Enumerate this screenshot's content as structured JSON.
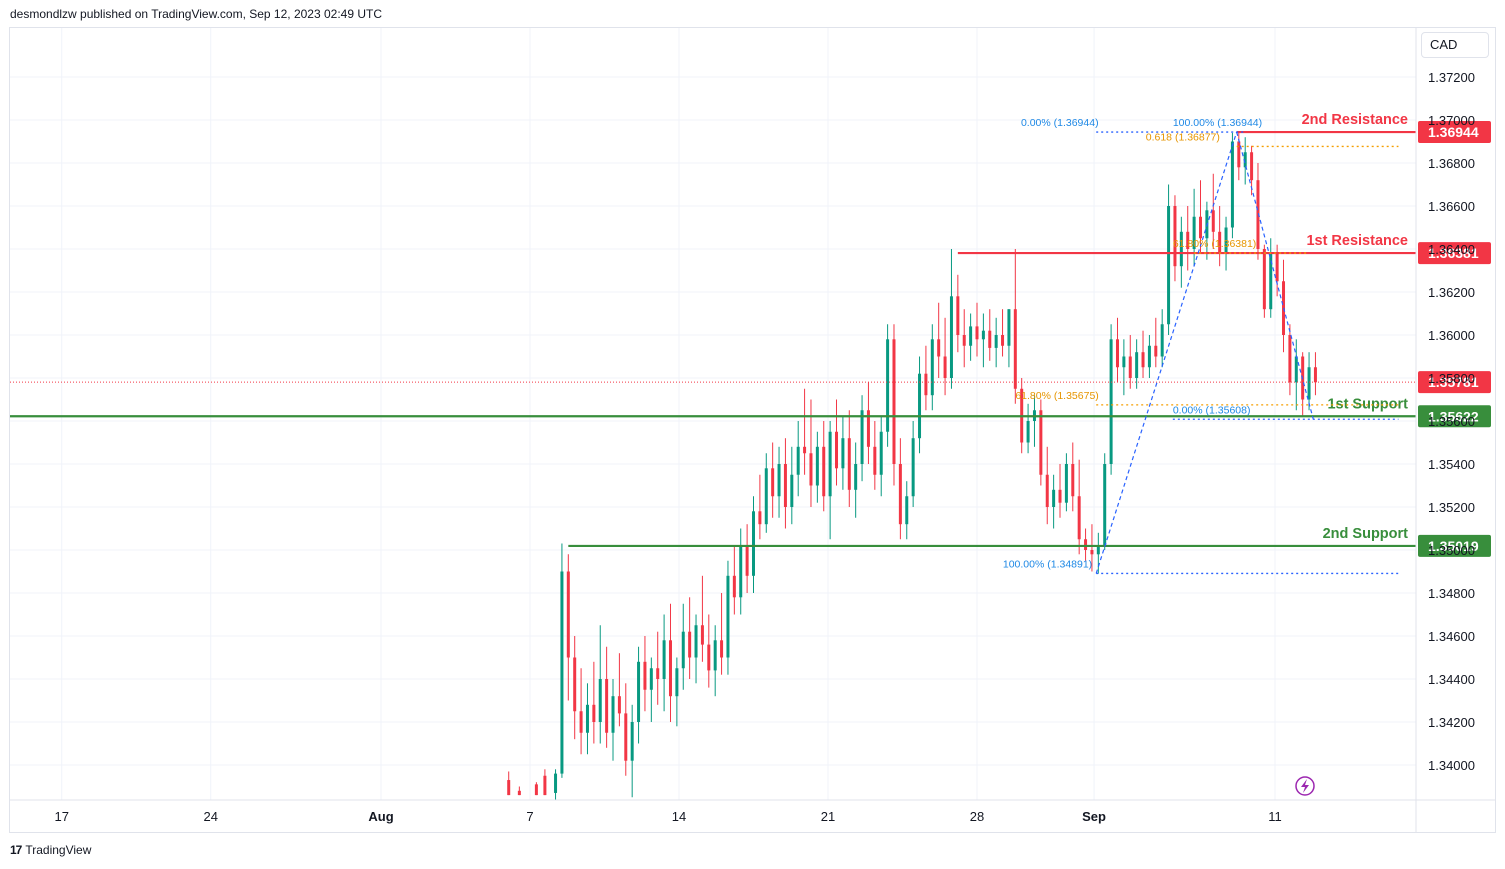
{
  "header": {
    "text": "desmondlzw published on TradingView.com, Sep 12, 2023 02:49 UTC"
  },
  "footer": {
    "brand": "TradingView",
    "logo_glyph": "17"
  },
  "currency_button": {
    "label": "CAD"
  },
  "colors": {
    "up": "#26a69a",
    "down": "#ef5350",
    "up_body": "#089981",
    "down_body": "#f23645",
    "resistance": "#f23645",
    "support": "#388e3c",
    "fib_blue": "#2962ff",
    "fib_orange": "#f59f00",
    "current": "#f23645",
    "grid": "#f0f3fa",
    "lightning": "#9c27b0"
  },
  "chart_data": {
    "type": "candlestick",
    "symbol_quote": "CAD",
    "ylim": [
      1.338,
      1.374
    ],
    "y_ticks": [
      "1.37200",
      "1.37000",
      "1.36800",
      "1.36600",
      "1.36400",
      "1.36200",
      "1.36000",
      "1.35800",
      "1.35600",
      "1.35400",
      "1.35200",
      "1.35000",
      "1.34800",
      "1.34600",
      "1.34400",
      "1.34200",
      "1.34000"
    ],
    "x_ticks": [
      {
        "label": "17",
        "day": -22
      },
      {
        "label": "24",
        "day": -15
      },
      {
        "label": "Aug",
        "day": -7
      },
      {
        "label": "7",
        "day": 0
      },
      {
        "label": "14",
        "day": 7
      },
      {
        "label": "21",
        "day": 14
      },
      {
        "label": "28",
        "day": 21
      },
      {
        "label": "Sep",
        "day": 26.5
      },
      {
        "label": "11",
        "day": 35
      }
    ],
    "x_range_days": [
      -25.6,
      41.5
    ],
    "current_price": 1.35781,
    "levels": [
      {
        "name": "2nd Resistance",
        "value": 1.36944,
        "kind": "resistance",
        "label": "1.36944",
        "start_day": 33.2
      },
      {
        "name": "1st Resistance",
        "value": 1.36381,
        "kind": "resistance",
        "label": "1.36381",
        "start_day": 20.1
      },
      {
        "name": "1st Support",
        "value": 1.35622,
        "kind": "support",
        "label": "1.35622",
        "start_day": -25.6
      },
      {
        "name": "2nd Support",
        "value": 1.35019,
        "kind": "support",
        "label": "1.35019",
        "start_day": 1.8
      }
    ],
    "current_label": "1.35781",
    "fib_annotations": [
      {
        "text": "0.00% (1.36944)",
        "price": 1.36944,
        "color": "blue",
        "anchor_day": 26.9,
        "align": "end"
      },
      {
        "text": "100.00% (1.36944)",
        "price": 1.36944,
        "color": "blue",
        "anchor_day": 30.2,
        "align": "start"
      },
      {
        "text": "0.618 (1.36877)",
        "price": 1.36877,
        "color": "orange",
        "anchor_day": 32.6,
        "align": "end"
      },
      {
        "text": "61.80% (1.36381)",
        "price": 1.36381,
        "color": "orange",
        "anchor_day": 30.2,
        "align": "start"
      },
      {
        "text": "61.80% (1.35675)",
        "price": 1.35675,
        "color": "orange",
        "anchor_day": 22.8,
        "align": "start"
      },
      {
        "text": "0.00% (1.35608)",
        "price": 1.35608,
        "color": "blue",
        "anchor_day": 30.2,
        "align": "start"
      },
      {
        "text": "100.00% (1.34891)",
        "price": 1.34891,
        "color": "blue",
        "anchor_day": 26.6,
        "align": "end"
      }
    ],
    "fib_lines": [
      {
        "price": 1.36944,
        "from_day": 26.6,
        "to_day": 33.6,
        "color": "blue"
      },
      {
        "price": 1.36877,
        "from_day": 33.2,
        "to_day": 40.8,
        "color": "orange"
      },
      {
        "price": 1.36381,
        "from_day": 31.2,
        "to_day": 36.5,
        "color": "orange"
      },
      {
        "price": 1.35675,
        "from_day": 26.6,
        "to_day": 40.8,
        "color": "orange"
      },
      {
        "price": 1.35608,
        "from_day": 30.2,
        "to_day": 40.8,
        "color": "blue"
      },
      {
        "price": 1.34891,
        "from_day": 26.6,
        "to_day": 40.8,
        "color": "blue"
      }
    ],
    "trend_lines": [
      {
        "from_day": 26.6,
        "from_price": 1.34891,
        "to_day": 33.2,
        "to_price": 1.36944
      },
      {
        "from_day": 33.2,
        "from_price": 1.36944,
        "to_day": 36.8,
        "to_price": 1.35608
      }
    ],
    "candles": [
      {
        "d": -1.0,
        "o": 1.3393,
        "h": 1.3397,
        "l": 1.3386,
        "c": 1.3386
      },
      {
        "d": -0.5,
        "o": 1.3388,
        "h": 1.339,
        "l": 1.3386,
        "c": 1.3386
      },
      {
        "d": 0.3,
        "o": 1.3391,
        "h": 1.3392,
        "l": 1.3386,
        "c": 1.3386
      },
      {
        "d": 0.7,
        "o": 1.3395,
        "h": 1.3398,
        "l": 1.3386,
        "c": 1.3386
      },
      {
        "d": 1.2,
        "o": 1.3387,
        "h": 1.3398,
        "l": 1.338,
        "c": 1.3396
      },
      {
        "d": 1.5,
        "o": 1.3396,
        "h": 1.3503,
        "l": 1.3394,
        "c": 1.349
      },
      {
        "d": 1.8,
        "o": 1.349,
        "h": 1.3498,
        "l": 1.343,
        "c": 1.345
      },
      {
        "d": 2.1,
        "o": 1.345,
        "h": 1.346,
        "l": 1.3412,
        "c": 1.3425
      },
      {
        "d": 2.4,
        "o": 1.3425,
        "h": 1.3445,
        "l": 1.3405,
        "c": 1.3415
      },
      {
        "d": 2.7,
        "o": 1.3415,
        "h": 1.3438,
        "l": 1.3405,
        "c": 1.3428
      },
      {
        "d": 3.0,
        "o": 1.3428,
        "h": 1.3448,
        "l": 1.341,
        "c": 1.342
      },
      {
        "d": 3.3,
        "o": 1.342,
        "h": 1.3465,
        "l": 1.341,
        "c": 1.344
      },
      {
        "d": 3.6,
        "o": 1.344,
        "h": 1.3455,
        "l": 1.3408,
        "c": 1.3415
      },
      {
        "d": 3.9,
        "o": 1.3415,
        "h": 1.344,
        "l": 1.3402,
        "c": 1.3432
      },
      {
        "d": 4.2,
        "o": 1.3432,
        "h": 1.3452,
        "l": 1.3418,
        "c": 1.3424
      },
      {
        "d": 4.5,
        "o": 1.3424,
        "h": 1.3438,
        "l": 1.3395,
        "c": 1.3402
      },
      {
        "d": 4.8,
        "o": 1.3402,
        "h": 1.3428,
        "l": 1.3385,
        "c": 1.342
      },
      {
        "d": 5.1,
        "o": 1.342,
        "h": 1.3455,
        "l": 1.341,
        "c": 1.3448
      },
      {
        "d": 5.4,
        "o": 1.3448,
        "h": 1.346,
        "l": 1.3425,
        "c": 1.3435
      },
      {
        "d": 5.7,
        "o": 1.3435,
        "h": 1.345,
        "l": 1.342,
        "c": 1.3445
      },
      {
        "d": 6.0,
        "o": 1.3445,
        "h": 1.3462,
        "l": 1.3428,
        "c": 1.344
      },
      {
        "d": 6.3,
        "o": 1.344,
        "h": 1.347,
        "l": 1.3425,
        "c": 1.3458
      },
      {
        "d": 6.6,
        "o": 1.3458,
        "h": 1.3475,
        "l": 1.342,
        "c": 1.3432
      },
      {
        "d": 6.9,
        "o": 1.3432,
        "h": 1.345,
        "l": 1.3418,
        "c": 1.3445
      },
      {
        "d": 7.2,
        "o": 1.3445,
        "h": 1.3475,
        "l": 1.3435,
        "c": 1.3462
      },
      {
        "d": 7.5,
        "o": 1.3462,
        "h": 1.3478,
        "l": 1.344,
        "c": 1.345
      },
      {
        "d": 7.8,
        "o": 1.345,
        "h": 1.347,
        "l": 1.3438,
        "c": 1.3465
      },
      {
        "d": 8.1,
        "o": 1.3465,
        "h": 1.3488,
        "l": 1.3448,
        "c": 1.3456
      },
      {
        "d": 8.4,
        "o": 1.3456,
        "h": 1.347,
        "l": 1.3436,
        "c": 1.3444
      },
      {
        "d": 8.7,
        "o": 1.3444,
        "h": 1.3465,
        "l": 1.3432,
        "c": 1.3458
      },
      {
        "d": 9.0,
        "o": 1.3458,
        "h": 1.348,
        "l": 1.3442,
        "c": 1.345
      },
      {
        "d": 9.3,
        "o": 1.345,
        "h": 1.3495,
        "l": 1.3442,
        "c": 1.3488
      },
      {
        "d": 9.6,
        "o": 1.3488,
        "h": 1.3502,
        "l": 1.347,
        "c": 1.3478
      },
      {
        "d": 9.9,
        "o": 1.3478,
        "h": 1.351,
        "l": 1.347,
        "c": 1.3502
      },
      {
        "d": 10.2,
        "o": 1.3502,
        "h": 1.3512,
        "l": 1.348,
        "c": 1.3488
      },
      {
        "d": 10.5,
        "o": 1.3488,
        "h": 1.3525,
        "l": 1.348,
        "c": 1.3518
      },
      {
        "d": 10.8,
        "o": 1.3518,
        "h": 1.3535,
        "l": 1.3505,
        "c": 1.3512
      },
      {
        "d": 11.1,
        "o": 1.3512,
        "h": 1.3545,
        "l": 1.3508,
        "c": 1.3538
      },
      {
        "d": 11.4,
        "o": 1.3538,
        "h": 1.355,
        "l": 1.3515,
        "c": 1.3525
      },
      {
        "d": 11.7,
        "o": 1.3525,
        "h": 1.3548,
        "l": 1.3515,
        "c": 1.354
      },
      {
        "d": 12.0,
        "o": 1.354,
        "h": 1.3552,
        "l": 1.351,
        "c": 1.352
      },
      {
        "d": 12.3,
        "o": 1.352,
        "h": 1.3548,
        "l": 1.3512,
        "c": 1.3535
      },
      {
        "d": 12.6,
        "o": 1.3535,
        "h": 1.356,
        "l": 1.3525,
        "c": 1.3548
      },
      {
        "d": 12.9,
        "o": 1.3548,
        "h": 1.3575,
        "l": 1.3535,
        "c": 1.3545
      },
      {
        "d": 13.2,
        "o": 1.3545,
        "h": 1.357,
        "l": 1.352,
        "c": 1.353
      },
      {
        "d": 13.5,
        "o": 1.353,
        "h": 1.3555,
        "l": 1.3522,
        "c": 1.3548
      },
      {
        "d": 13.8,
        "o": 1.3548,
        "h": 1.356,
        "l": 1.3518,
        "c": 1.3525
      },
      {
        "d": 14.1,
        "o": 1.3525,
        "h": 1.356,
        "l": 1.3505,
        "c": 1.3555
      },
      {
        "d": 14.4,
        "o": 1.3555,
        "h": 1.357,
        "l": 1.353,
        "c": 1.3538
      },
      {
        "d": 14.7,
        "o": 1.3538,
        "h": 1.3562,
        "l": 1.3528,
        "c": 1.3552
      },
      {
        "d": 15.0,
        "o": 1.3552,
        "h": 1.3565,
        "l": 1.352,
        "c": 1.3528
      },
      {
        "d": 15.3,
        "o": 1.3528,
        "h": 1.355,
        "l": 1.3515,
        "c": 1.354
      },
      {
        "d": 15.6,
        "o": 1.354,
        "h": 1.3572,
        "l": 1.3532,
        "c": 1.3565
      },
      {
        "d": 15.9,
        "o": 1.3565,
        "h": 1.3578,
        "l": 1.354,
        "c": 1.3548
      },
      {
        "d": 16.2,
        "o": 1.3548,
        "h": 1.356,
        "l": 1.3528,
        "c": 1.3535
      },
      {
        "d": 16.5,
        "o": 1.3535,
        "h": 1.3562,
        "l": 1.3525,
        "c": 1.3555
      },
      {
        "d": 16.8,
        "o": 1.3555,
        "h": 1.3605,
        "l": 1.3548,
        "c": 1.3598
      },
      {
        "d": 17.1,
        "o": 1.3598,
        "h": 1.3605,
        "l": 1.353,
        "c": 1.354
      },
      {
        "d": 17.4,
        "o": 1.354,
        "h": 1.3552,
        "l": 1.3505,
        "c": 1.3512
      },
      {
        "d": 17.7,
        "o": 1.3512,
        "h": 1.3532,
        "l": 1.3505,
        "c": 1.3525
      },
      {
        "d": 18.0,
        "o": 1.3525,
        "h": 1.356,
        "l": 1.352,
        "c": 1.3552
      },
      {
        "d": 18.3,
        "o": 1.3552,
        "h": 1.359,
        "l": 1.3545,
        "c": 1.3582
      },
      {
        "d": 18.6,
        "o": 1.3582,
        "h": 1.3595,
        "l": 1.3565,
        "c": 1.3572
      },
      {
        "d": 18.9,
        "o": 1.3572,
        "h": 1.3605,
        "l": 1.3565,
        "c": 1.3598
      },
      {
        "d": 19.2,
        "o": 1.3598,
        "h": 1.3615,
        "l": 1.358,
        "c": 1.359
      },
      {
        "d": 19.5,
        "o": 1.359,
        "h": 1.3608,
        "l": 1.3572,
        "c": 1.358
      },
      {
        "d": 19.8,
        "o": 1.358,
        "h": 1.364,
        "l": 1.3575,
        "c": 1.3618
      },
      {
        "d": 20.1,
        "o": 1.3618,
        "h": 1.3628,
        "l": 1.3592,
        "c": 1.36
      },
      {
        "d": 20.4,
        "o": 1.36,
        "h": 1.3612,
        "l": 1.3585,
        "c": 1.3595
      },
      {
        "d": 20.7,
        "o": 1.3595,
        "h": 1.361,
        "l": 1.3588,
        "c": 1.3604
      },
      {
        "d": 21.0,
        "o": 1.3604,
        "h": 1.3615,
        "l": 1.359,
        "c": 1.3598
      },
      {
        "d": 21.3,
        "o": 1.3598,
        "h": 1.361,
        "l": 1.3585,
        "c": 1.3602
      },
      {
        "d": 21.6,
        "o": 1.3602,
        "h": 1.3612,
        "l": 1.3588,
        "c": 1.3594
      },
      {
        "d": 21.9,
        "o": 1.3594,
        "h": 1.3608,
        "l": 1.3585,
        "c": 1.36
      },
      {
        "d": 22.2,
        "o": 1.36,
        "h": 1.3612,
        "l": 1.359,
        "c": 1.3595
      },
      {
        "d": 22.5,
        "o": 1.3595,
        "h": 1.3612,
        "l": 1.3585,
        "c": 1.3612
      },
      {
        "d": 22.8,
        "o": 1.3612,
        "h": 1.364,
        "l": 1.3568,
        "c": 1.3575
      },
      {
        "d": 23.1,
        "o": 1.3575,
        "h": 1.358,
        "l": 1.3545,
        "c": 1.355
      },
      {
        "d": 23.4,
        "o": 1.355,
        "h": 1.3568,
        "l": 1.3545,
        "c": 1.356
      },
      {
        "d": 23.7,
        "o": 1.356,
        "h": 1.3572,
        "l": 1.3548,
        "c": 1.3565
      },
      {
        "d": 24.0,
        "o": 1.3565,
        "h": 1.357,
        "l": 1.353,
        "c": 1.3535
      },
      {
        "d": 24.3,
        "o": 1.3535,
        "h": 1.3548,
        "l": 1.3512,
        "c": 1.352
      },
      {
        "d": 24.6,
        "o": 1.352,
        "h": 1.3535,
        "l": 1.351,
        "c": 1.3528
      },
      {
        "d": 24.9,
        "o": 1.3528,
        "h": 1.354,
        "l": 1.3515,
        "c": 1.3522
      },
      {
        "d": 25.2,
        "o": 1.3522,
        "h": 1.3545,
        "l": 1.3518,
        "c": 1.354
      },
      {
        "d": 25.5,
        "o": 1.354,
        "h": 1.355,
        "l": 1.3518,
        "c": 1.3525
      },
      {
        "d": 25.8,
        "o": 1.3525,
        "h": 1.3542,
        "l": 1.3498,
        "c": 1.3505
      },
      {
        "d": 26.1,
        "o": 1.3505,
        "h": 1.351,
        "l": 1.3495,
        "c": 1.35
      },
      {
        "d": 26.4,
        "o": 1.35,
        "h": 1.3512,
        "l": 1.349,
        "c": 1.3498
      },
      {
        "d": 26.7,
        "o": 1.3498,
        "h": 1.3508,
        "l": 1.3489,
        "c": 1.3502
      },
      {
        "d": 27.0,
        "o": 1.3502,
        "h": 1.3545,
        "l": 1.35,
        "c": 1.354
      },
      {
        "d": 27.3,
        "o": 1.354,
        "h": 1.3605,
        "l": 1.3535,
        "c": 1.3598
      },
      {
        "d": 27.6,
        "o": 1.3598,
        "h": 1.3608,
        "l": 1.3578,
        "c": 1.3585
      },
      {
        "d": 27.9,
        "o": 1.3585,
        "h": 1.3598,
        "l": 1.3572,
        "c": 1.359
      },
      {
        "d": 28.2,
        "o": 1.359,
        "h": 1.36,
        "l": 1.3575,
        "c": 1.358
      },
      {
        "d": 28.5,
        "o": 1.358,
        "h": 1.3598,
        "l": 1.3575,
        "c": 1.3592
      },
      {
        "d": 28.8,
        "o": 1.3592,
        "h": 1.3602,
        "l": 1.358,
        "c": 1.3585
      },
      {
        "d": 29.1,
        "o": 1.3585,
        "h": 1.36,
        "l": 1.358,
        "c": 1.3595
      },
      {
        "d": 29.4,
        "o": 1.3595,
        "h": 1.3608,
        "l": 1.3585,
        "c": 1.359
      },
      {
        "d": 29.7,
        "o": 1.359,
        "h": 1.3612,
        "l": 1.3585,
        "c": 1.3605
      },
      {
        "d": 30.0,
        "o": 1.3605,
        "h": 1.367,
        "l": 1.36,
        "c": 1.366
      },
      {
        "d": 30.3,
        "o": 1.366,
        "h": 1.3665,
        "l": 1.3625,
        "c": 1.3632
      },
      {
        "d": 30.6,
        "o": 1.3632,
        "h": 1.3655,
        "l": 1.3622,
        "c": 1.3648
      },
      {
        "d": 30.9,
        "o": 1.3648,
        "h": 1.366,
        "l": 1.363,
        "c": 1.364
      },
      {
        "d": 31.2,
        "o": 1.364,
        "h": 1.3668,
        "l": 1.3632,
        "c": 1.3655
      },
      {
        "d": 31.5,
        "o": 1.3655,
        "h": 1.3672,
        "l": 1.3638,
        "c": 1.3645
      },
      {
        "d": 31.8,
        "o": 1.3645,
        "h": 1.3662,
        "l": 1.3635,
        "c": 1.3658
      },
      {
        "d": 32.1,
        "o": 1.3658,
        "h": 1.3675,
        "l": 1.364,
        "c": 1.3648
      },
      {
        "d": 32.4,
        "o": 1.3648,
        "h": 1.366,
        "l": 1.3632,
        "c": 1.3638
      },
      {
        "d": 32.7,
        "o": 1.3638,
        "h": 1.3655,
        "l": 1.363,
        "c": 1.365
      },
      {
        "d": 33.0,
        "o": 1.365,
        "h": 1.3694,
        "l": 1.3645,
        "c": 1.369
      },
      {
        "d": 33.3,
        "o": 1.369,
        "h": 1.3694,
        "l": 1.3672,
        "c": 1.3678
      },
      {
        "d": 33.6,
        "o": 1.3678,
        "h": 1.3692,
        "l": 1.367,
        "c": 1.3685
      },
      {
        "d": 33.9,
        "o": 1.3685,
        "h": 1.3688,
        "l": 1.3665,
        "c": 1.3672
      },
      {
        "d": 34.2,
        "o": 1.3672,
        "h": 1.368,
        "l": 1.3635,
        "c": 1.364
      },
      {
        "d": 34.5,
        "o": 1.364,
        "h": 1.3642,
        "l": 1.3608,
        "c": 1.3612
      },
      {
        "d": 34.8,
        "o": 1.3612,
        "h": 1.3645,
        "l": 1.3608,
        "c": 1.3638
      },
      {
        "d": 35.1,
        "o": 1.3638,
        "h": 1.3642,
        "l": 1.3618,
        "c": 1.3625
      },
      {
        "d": 35.4,
        "o": 1.3625,
        "h": 1.3635,
        "l": 1.3592,
        "c": 1.36
      },
      {
        "d": 35.7,
        "o": 1.36,
        "h": 1.3605,
        "l": 1.3572,
        "c": 1.3578
      },
      {
        "d": 36.0,
        "o": 1.3578,
        "h": 1.3598,
        "l": 1.3565,
        "c": 1.359
      },
      {
        "d": 36.3,
        "o": 1.359,
        "h": 1.3592,
        "l": 1.3562,
        "c": 1.357
      },
      {
        "d": 36.6,
        "o": 1.357,
        "h": 1.3592,
        "l": 1.3565,
        "c": 1.3585
      },
      {
        "d": 36.9,
        "o": 1.3585,
        "h": 1.3592,
        "l": 1.3572,
        "c": 1.3578
      }
    ]
  }
}
